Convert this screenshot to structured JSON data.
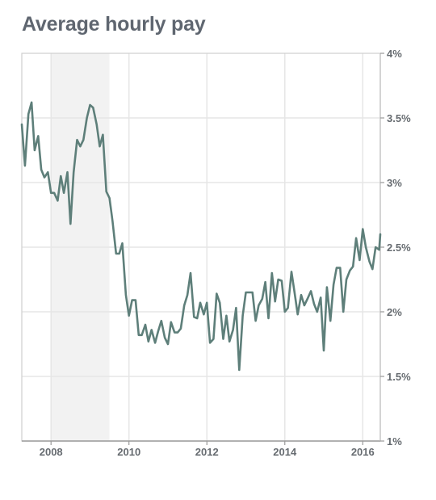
{
  "chart_data": {
    "type": "line",
    "title": "Average hourly pay",
    "xlabel": "",
    "ylabel": "",
    "xlim": [
      2007.25,
      2016.45
    ],
    "ylim": [
      1,
      4
    ],
    "x_ticks": [
      {
        "value": 2008,
        "label": "2008"
      },
      {
        "value": 2010,
        "label": "2010"
      },
      {
        "value": 2012,
        "label": "2012"
      },
      {
        "value": 2014,
        "label": "2014"
      },
      {
        "value": 2016,
        "label": "2016"
      }
    ],
    "y_ticks": [
      {
        "value": 1,
        "label": "1%"
      },
      {
        "value": 1.5,
        "label": "1.5%"
      },
      {
        "value": 2,
        "label": "2%"
      },
      {
        "value": 2.5,
        "label": "2.5%"
      },
      {
        "value": 3,
        "label": "3%"
      },
      {
        "value": 3.5,
        "label": "3.5%"
      },
      {
        "value": 4,
        "label": "4%"
      }
    ],
    "y_axis_side": "right",
    "grid": true,
    "recession_shading": {
      "start": 2008.0,
      "end": 2009.5
    },
    "series": [
      {
        "color": "#5e7f7a",
        "points": [
          [
            2007.25,
            3.45
          ],
          [
            2007.33,
            3.13
          ],
          [
            2007.42,
            3.53
          ],
          [
            2007.5,
            3.62
          ],
          [
            2007.58,
            3.25
          ],
          [
            2007.67,
            3.36
          ],
          [
            2007.75,
            3.1
          ],
          [
            2007.83,
            3.04
          ],
          [
            2007.92,
            3.08
          ],
          [
            2008.0,
            2.92
          ],
          [
            2008.08,
            2.92
          ],
          [
            2008.17,
            2.86
          ],
          [
            2008.25,
            3.05
          ],
          [
            2008.33,
            2.92
          ],
          [
            2008.42,
            3.08
          ],
          [
            2008.5,
            2.68
          ],
          [
            2008.58,
            3.08
          ],
          [
            2008.67,
            3.33
          ],
          [
            2008.75,
            3.28
          ],
          [
            2008.83,
            3.33
          ],
          [
            2008.92,
            3.5
          ],
          [
            2009.0,
            3.6
          ],
          [
            2009.08,
            3.58
          ],
          [
            2009.17,
            3.45
          ],
          [
            2009.25,
            3.28
          ],
          [
            2009.33,
            3.37
          ],
          [
            2009.42,
            2.93
          ],
          [
            2009.5,
            2.88
          ],
          [
            2009.58,
            2.7
          ],
          [
            2009.67,
            2.45
          ],
          [
            2009.75,
            2.45
          ],
          [
            2009.83,
            2.53
          ],
          [
            2009.92,
            2.13
          ],
          [
            2010.0,
            1.97
          ],
          [
            2010.08,
            2.09
          ],
          [
            2010.17,
            2.09
          ],
          [
            2010.25,
            1.82
          ],
          [
            2010.33,
            1.82
          ],
          [
            2010.42,
            1.9
          ],
          [
            2010.5,
            1.77
          ],
          [
            2010.58,
            1.86
          ],
          [
            2010.67,
            1.76
          ],
          [
            2010.75,
            1.85
          ],
          [
            2010.83,
            1.93
          ],
          [
            2010.92,
            1.8
          ],
          [
            2011.0,
            1.75
          ],
          [
            2011.08,
            1.92
          ],
          [
            2011.17,
            1.84
          ],
          [
            2011.25,
            1.84
          ],
          [
            2011.33,
            1.87
          ],
          [
            2011.42,
            2.05
          ],
          [
            2011.5,
            2.13
          ],
          [
            2011.58,
            2.3
          ],
          [
            2011.67,
            1.96
          ],
          [
            2011.75,
            1.95
          ],
          [
            2011.83,
            2.07
          ],
          [
            2011.92,
            1.98
          ],
          [
            2012.0,
            2.07
          ],
          [
            2012.08,
            1.76
          ],
          [
            2012.17,
            1.79
          ],
          [
            2012.25,
            2.14
          ],
          [
            2012.33,
            2.07
          ],
          [
            2012.42,
            1.79
          ],
          [
            2012.5,
            1.97
          ],
          [
            2012.58,
            1.77
          ],
          [
            2012.67,
            1.86
          ],
          [
            2012.75,
            2.03
          ],
          [
            2012.83,
            1.55
          ],
          [
            2012.92,
            1.97
          ],
          [
            2013.0,
            2.15
          ],
          [
            2013.08,
            2.15
          ],
          [
            2013.17,
            2.15
          ],
          [
            2013.25,
            1.93
          ],
          [
            2013.33,
            2.05
          ],
          [
            2013.42,
            2.1
          ],
          [
            2013.5,
            2.23
          ],
          [
            2013.58,
            1.95
          ],
          [
            2013.67,
            2.3
          ],
          [
            2013.75,
            2.08
          ],
          [
            2013.83,
            2.25
          ],
          [
            2013.92,
            2.24
          ],
          [
            2014.0,
            2.0
          ],
          [
            2014.08,
            2.03
          ],
          [
            2014.17,
            2.31
          ],
          [
            2014.25,
            2.15
          ],
          [
            2014.33,
            1.98
          ],
          [
            2014.42,
            2.13
          ],
          [
            2014.5,
            2.05
          ],
          [
            2014.58,
            2.1
          ],
          [
            2014.67,
            2.16
          ],
          [
            2014.75,
            2.06
          ],
          [
            2014.83,
            2.0
          ],
          [
            2014.92,
            2.11
          ],
          [
            2015.0,
            1.7
          ],
          [
            2015.08,
            2.19
          ],
          [
            2015.17,
            1.93
          ],
          [
            2015.25,
            2.21
          ],
          [
            2015.33,
            2.34
          ],
          [
            2015.42,
            2.34
          ],
          [
            2015.5,
            2.0
          ],
          [
            2015.58,
            2.25
          ],
          [
            2015.67,
            2.32
          ],
          [
            2015.75,
            2.35
          ],
          [
            2015.83,
            2.57
          ],
          [
            2015.92,
            2.4
          ],
          [
            2016.0,
            2.64
          ],
          [
            2016.08,
            2.5
          ],
          [
            2016.17,
            2.39
          ],
          [
            2016.25,
            2.33
          ],
          [
            2016.33,
            2.5
          ],
          [
            2016.42,
            2.48
          ],
          [
            2016.45,
            2.6
          ]
        ]
      }
    ]
  }
}
